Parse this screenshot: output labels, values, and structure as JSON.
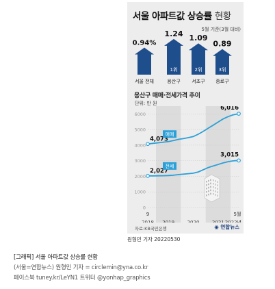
{
  "title": {
    "bold": "서울 아파트값 상승률",
    "light": "현황"
  },
  "basis": "5월 기준(3월 대비)",
  "colors": {
    "panel_bg": "#ededed",
    "arrow_blue": "#1f4e8c",
    "line_blue": "#2aa0d8",
    "text": "#222222"
  },
  "bars": [
    {
      "label": "서울 전체",
      "value": "0.94%",
      "num": 0.94,
      "rank": ""
    },
    {
      "label": "용산구",
      "value": "1.24",
      "num": 1.24,
      "rank": "1위"
    },
    {
      "label": "서초구",
      "value": "1.09",
      "num": 1.09,
      "rank": "2위"
    },
    {
      "label": "종로구",
      "value": "0.89",
      "num": 0.89,
      "rank": "3위"
    }
  ],
  "line_chart": {
    "title": "용산구 매매·전세가격 추이",
    "unit": "단위: 만 원",
    "source": "자료:KB국민은행",
    "logo": "연합뉴스"
  },
  "chart_data": {
    "type": "line",
    "title": "용산구 매매·전세가격 추이",
    "ylabel": "단위: 만 원",
    "ylim": [
      0,
      6500
    ],
    "yticks": [
      0,
      1000,
      2000,
      3000,
      4000,
      5000,
      6000
    ],
    "x_start_label": [
      "9",
      "2018"
    ],
    "x_end_label": [
      "5월",
      "2022년"
    ],
    "year_labels": [
      "2019",
      "2020",
      "2021"
    ],
    "x_years": [
      2018.67,
      2022.33
    ],
    "series": [
      {
        "name": "매매",
        "color": "#2aa0d8",
        "start_label": "4,073",
        "end_label": "6,016",
        "points": [
          [
            2018.67,
            4073
          ],
          [
            2018.9,
            4120
          ],
          [
            2019.1,
            4150
          ],
          [
            2019.3,
            4190
          ],
          [
            2019.5,
            4230
          ],
          [
            2019.7,
            4290
          ],
          [
            2019.9,
            4370
          ],
          [
            2020.1,
            4420
          ],
          [
            2020.3,
            4480
          ],
          [
            2020.5,
            4550
          ],
          [
            2020.7,
            4700
          ],
          [
            2020.9,
            4880
          ],
          [
            2021.1,
            5080
          ],
          [
            2021.3,
            5280
          ],
          [
            2021.5,
            5480
          ],
          [
            2021.7,
            5680
          ],
          [
            2021.9,
            5830
          ],
          [
            2022.1,
            5940
          ],
          [
            2022.33,
            6016
          ]
        ]
      },
      {
        "name": "전세",
        "color": "#2aa0d8",
        "start_label": "2,027",
        "end_label": "3,015",
        "points": [
          [
            2018.67,
            2027
          ],
          [
            2018.9,
            2030
          ],
          [
            2019.1,
            2035
          ],
          [
            2019.3,
            2040
          ],
          [
            2019.5,
            2050
          ],
          [
            2019.7,
            2075
          ],
          [
            2019.9,
            2110
          ],
          [
            2020.1,
            2140
          ],
          [
            2020.3,
            2170
          ],
          [
            2020.5,
            2200
          ],
          [
            2020.7,
            2280
          ],
          [
            2020.9,
            2420
          ],
          [
            2021.1,
            2560
          ],
          [
            2021.3,
            2660
          ],
          [
            2021.5,
            2760
          ],
          [
            2021.7,
            2860
          ],
          [
            2021.9,
            2940
          ],
          [
            2022.1,
            2990
          ],
          [
            2022.33,
            3015
          ]
        ]
      }
    ]
  },
  "credit": "원형민 기자  20220530",
  "caption": [
    "[그래픽] 서울 아파트값 상승률 현황",
    "(서울=연합뉴스) 원형민 기자 = circlemin@yna.co.kr",
    "페이스북 tuney.kr/LeYN1 트위터 @yonhap_graphics"
  ]
}
